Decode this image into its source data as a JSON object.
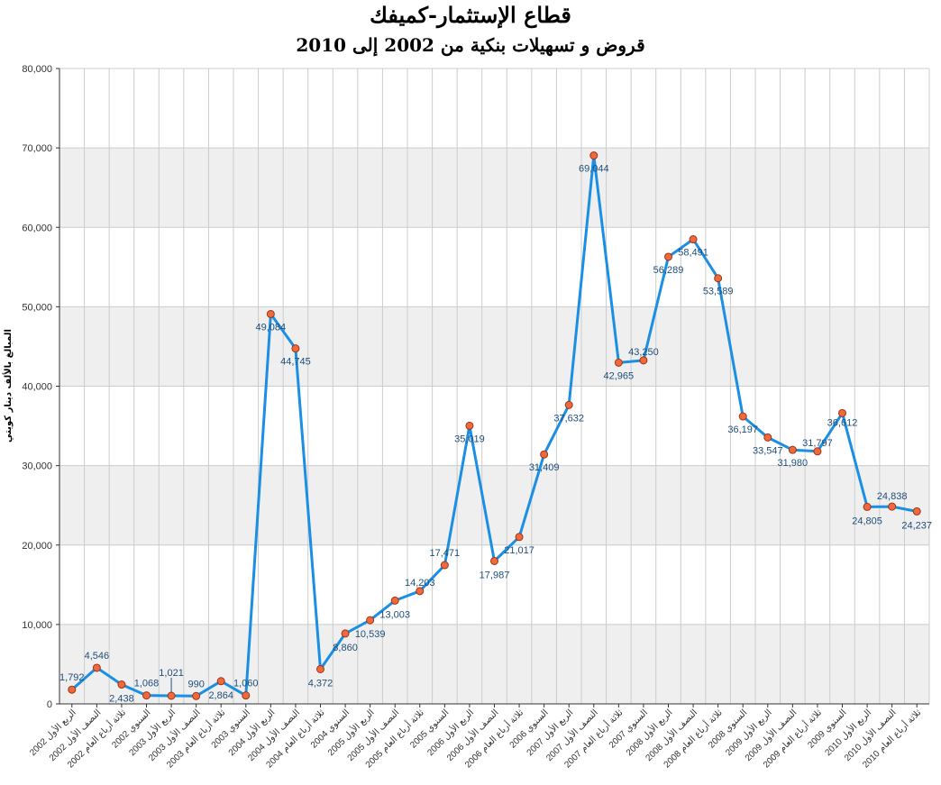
{
  "chart_data": {
    "type": "line",
    "title": "قطاع الإستثمار-كميفك",
    "subtitle": "قروض و تسهيلات بنكية من 2002 إلى 2010",
    "ylabel": "المبالغ بالألف دينار كويتي",
    "ylim": [
      0,
      80000
    ],
    "yticks": [
      "0",
      "10,000",
      "20,000",
      "30,000",
      "40,000",
      "50,000",
      "60,000",
      "70,000",
      "80,000"
    ],
    "categories": [
      "الربع الأول 2002",
      "النصف الأول 2002",
      "ثلاثة أرباع العام 2002",
      "السنوي 2002",
      "الربع الأول 2003",
      "النصف الأول 2003",
      "ثلاثة أرباع العام 2003",
      "السنوي 2003",
      "الربع الأول 2004",
      "النصف الأول 2004",
      "ثلاثة أرباع العام 2004",
      "السنوي 2004",
      "الربع الأول 2005",
      "النصف الأول 2005",
      "ثلاثة أرباع العام 2005",
      "السنوي 2005",
      "الربع الأول 2006",
      "النصف الأول 2006",
      "ثلاثة أرباع العام 2006",
      "السنوي 2006",
      "الربع الأول 2007",
      "النصف الأول 2007",
      "ثلاثة أرباع العام 2007",
      "السنوي 2007",
      "الربع الأول 2008",
      "النصف الأول 2008",
      "ثلاثة أرباع العام 2008",
      "السنوي 2008",
      "الربع الأول 2009",
      "النصف الأول 2009",
      "ثلاثة أرباع العام 2009",
      "السنوي 2009",
      "الربع الأول 2010",
      "النصف الأول 2010",
      "ثلاثة أرباع العام 2010"
    ],
    "values": [
      1792,
      4546,
      2438,
      1068,
      1021,
      990,
      2864,
      1060,
      49084,
      44745,
      4372,
      8860,
      10539,
      13003,
      14203,
      17471,
      35019,
      17987,
      21017,
      31409,
      37632,
      69044,
      42965,
      43250,
      56289,
      58491,
      53589,
      36197,
      33547,
      31980,
      31797,
      36612,
      24805,
      24838,
      24237
    ],
    "value_labels": [
      "1,792",
      "4,546",
      "2,438",
      "1,068",
      "1,021",
      "990",
      "2,864",
      "1,060",
      "49,084",
      "44,745",
      "4,372",
      "8,860",
      "10,539",
      "13,003",
      "14,203",
      "17,471",
      "35,019",
      "17,987",
      "21,017",
      "31,409",
      "37,632",
      "69,044",
      "42,965",
      "43,250",
      "56,289",
      "58,491",
      "53,589",
      "36,197",
      "33,547",
      "31,980",
      "31,797",
      "36,612",
      "24,805",
      "24,838",
      "24,237"
    ],
    "grid": true,
    "legend": "none",
    "colors": {
      "line": "#1a8fe3",
      "marker": "#ee6a3a",
      "marker_edge": "#a0331a",
      "band": "#efefef",
      "grid": "#cccccc"
    }
  }
}
